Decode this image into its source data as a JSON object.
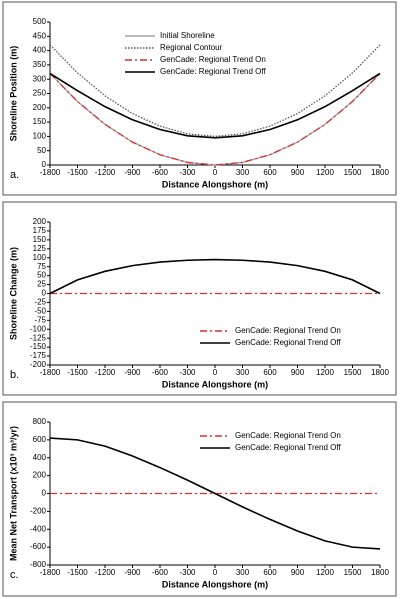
{
  "chart_data": [
    {
      "type": "line",
      "panel_label": "a.",
      "xlabel": "Distance Alongshore (m)",
      "ylabel": "Shoreline Position (m)",
      "x": [
        -1800,
        -1500,
        -1200,
        -900,
        -600,
        -300,
        0,
        300,
        600,
        900,
        1200,
        1500,
        1800
      ],
      "xlim": [
        -1800,
        1800
      ],
      "xticks": [
        -1800,
        -1500,
        -1200,
        -900,
        -600,
        -300,
        0,
        300,
        600,
        900,
        1200,
        1500,
        1800
      ],
      "ylim": [
        0,
        500
      ],
      "yticks": [
        0,
        50,
        100,
        150,
        200,
        250,
        300,
        350,
        400,
        450,
        500
      ],
      "legend": "upper-left",
      "series": [
        {
          "name": "Initial Shoreline",
          "color": "#a6a6a6",
          "style": "solid",
          "values": [
            320,
            222,
            142,
            80,
            36,
            9,
            0,
            9,
            36,
            80,
            142,
            222,
            320
          ]
        },
        {
          "name": "Regional Contour",
          "color": "#595959",
          "style": "dotted",
          "values": [
            420,
            322,
            242,
            180,
            136,
            109,
            100,
            109,
            136,
            180,
            242,
            322,
            420
          ]
        },
        {
          "name": "GenCade: Regional Trend On",
          "color": "#d3312d",
          "style": "dashdot",
          "values": [
            320,
            222,
            142,
            80,
            36,
            9,
            0,
            9,
            36,
            80,
            142,
            222,
            320
          ]
        },
        {
          "name": "GenCade: Regional Trend Off",
          "color": "#000000",
          "style": "solid",
          "values": [
            320,
            260,
            204,
            158,
            124,
            102,
            95,
            102,
            124,
            158,
            204,
            260,
            320
          ]
        }
      ]
    },
    {
      "type": "line",
      "panel_label": "b.",
      "xlabel": "Distance Alongshore (m)",
      "ylabel": "Shoreline Change (m)",
      "x": [
        -1800,
        -1500,
        -1200,
        -900,
        -600,
        -300,
        0,
        300,
        600,
        900,
        1200,
        1500,
        1800
      ],
      "xlim": [
        -1800,
        1800
      ],
      "xticks": [
        -1800,
        -1500,
        -1200,
        -900,
        -600,
        -300,
        0,
        300,
        600,
        900,
        1200,
        1500,
        1800
      ],
      "ylim": [
        -200,
        200
      ],
      "yticks": [
        -200,
        -175,
        -150,
        -125,
        -100,
        -75,
        -50,
        -25,
        0,
        25,
        50,
        75,
        100,
        125,
        150,
        175,
        200
      ],
      "legend": "lower-center",
      "series": [
        {
          "name": "GenCade: Regional Trend On",
          "color": "#d3312d",
          "style": "dashdot",
          "values": [
            0,
            0,
            0,
            0,
            0,
            0,
            0,
            0,
            0,
            0,
            0,
            0,
            0
          ]
        },
        {
          "name": "GenCade: Regional Trend Off",
          "color": "#000000",
          "style": "solid",
          "values": [
            0,
            38,
            62,
            78,
            88,
            93,
            95,
            93,
            88,
            78,
            62,
            38,
            0
          ]
        }
      ]
    },
    {
      "type": "line",
      "panel_label": "c.",
      "xlabel": "Distance Alongshore (m)",
      "ylabel": "Mean Net Transport (x10³ m³/yr)",
      "x": [
        -1800,
        -1500,
        -1200,
        -900,
        -600,
        -300,
        0,
        300,
        600,
        900,
        1200,
        1500,
        1800
      ],
      "xlim": [
        -1800,
        1800
      ],
      "xticks": [
        -1800,
        -1500,
        -1200,
        -900,
        -600,
        -300,
        0,
        300,
        600,
        900,
        1200,
        1500,
        1800
      ],
      "ylim": [
        -800,
        800
      ],
      "yticks": [
        -800,
        -600,
        -400,
        -200,
        0,
        200,
        400,
        600,
        800
      ],
      "legend": "upper-center",
      "series": [
        {
          "name": "GenCade: Regional Trend On",
          "color": "#d3312d",
          "style": "dashdot",
          "values": [
            0,
            0,
            0,
            0,
            0,
            0,
            0,
            0,
            0,
            0,
            0,
            0,
            0
          ]
        },
        {
          "name": "GenCade: Regional Trend Off",
          "color": "#000000",
          "style": "solid",
          "values": [
            620,
            600,
            530,
            420,
            290,
            150,
            0,
            -150,
            -290,
            -420,
            -530,
            -600,
            -620
          ]
        }
      ]
    }
  ]
}
